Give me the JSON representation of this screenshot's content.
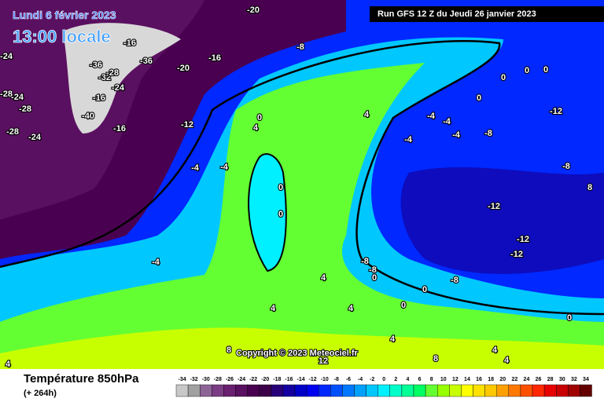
{
  "header": {
    "date": "Lundi 6 février 2023",
    "time": "13:00 locale",
    "run": "Run GFS 12 Z du Jeudi 26 janvier 2023"
  },
  "footer": {
    "title": "Température 850hPa",
    "lead": "(+ 264h)",
    "copyright": "Copyright © 2023 Meteociel.fr"
  },
  "legend": {
    "ticks": [
      -34,
      -32,
      -30,
      -28,
      -26,
      -24,
      -22,
      -20,
      -18,
      -16,
      -14,
      -12,
      -10,
      -8,
      -6,
      -4,
      -2,
      0,
      2,
      4,
      6,
      8,
      10,
      12,
      14,
      16,
      18,
      20,
      22,
      24,
      26,
      28,
      30,
      32,
      34
    ],
    "colors": [
      "#c8c8c8",
      "#a0a0a0",
      "#8c6496",
      "#7a3c84",
      "#6a2070",
      "#5a1060",
      "#4a0050",
      "#3c0048",
      "#280078",
      "#1400a0",
      "#0000c8",
      "#0000f0",
      "#0028ff",
      "#0050ff",
      "#0078ff",
      "#00a0ff",
      "#00c8ff",
      "#00f0ff",
      "#00ffc8",
      "#00ff96",
      "#00ff64",
      "#64ff32",
      "#96ff00",
      "#c8ff00",
      "#ffff00",
      "#ffe100",
      "#ffc800",
      "#ffa000",
      "#ff7800",
      "#ff5000",
      "#ff2800",
      "#e60000",
      "#c80000",
      "#a00000",
      "#640000"
    ]
  },
  "map": {
    "labels": [
      "-20",
      "-16",
      "-36",
      "-36",
      "-32",
      "-28",
      "-24",
      "-16",
      "-40",
      "-16",
      "-20",
      "-16",
      "-24",
      "-28",
      "-24",
      "-28",
      "-28",
      "-24",
      "-8",
      "-12",
      "-4",
      "-4",
      "-4",
      "0",
      "4",
      "4",
      "0",
      "0",
      "0",
      "0",
      "0",
      "0",
      "-4",
      "-4",
      "-4",
      "-4",
      "-8",
      "-12",
      "-8",
      "8",
      "-12",
      "-12",
      "-12",
      "-8",
      "-8",
      "0",
      "-8",
      "4",
      "0",
      "0",
      "4",
      "4",
      "0",
      "4",
      "8",
      "4",
      "8",
      "12",
      "4",
      "4"
    ]
  }
}
